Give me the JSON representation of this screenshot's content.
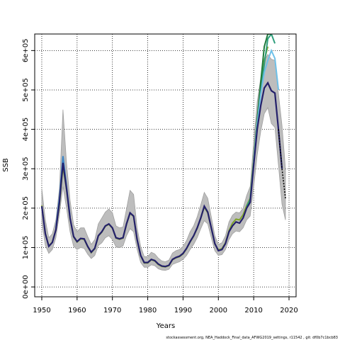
{
  "chart_data": {
    "type": "line",
    "xlabel": "Years",
    "ylabel": "SSB",
    "footer": "stockassessment.org, NEA_Haddock_Final_data_AFWG2019_settings, r11542 , git: df0b7c1bcb83",
    "xlim": [
      1948,
      2022
    ],
    "ylim": [
      -25000,
      642000
    ],
    "x_ticks": [
      1950,
      1960,
      1970,
      1980,
      1990,
      2000,
      2010,
      2020
    ],
    "x_tick_labels": [
      "1950",
      "1960",
      "1970",
      "1980",
      "1990",
      "2000",
      "2010",
      "2020"
    ],
    "y_ticks": [
      0,
      100000,
      200000,
      300000,
      400000,
      500000,
      600000
    ],
    "y_tick_labels": [
      "0e+00",
      "1e+05",
      "2e+05",
      "3e+05",
      "4e+05",
      "5e+05",
      "6e+05"
    ],
    "grid": true,
    "colors": {
      "band": "#bdbdbd",
      "band_edge": "#a0a0a0",
      "main": "#24206b",
      "projection": "#000000",
      "retro_green": "#7ea32a",
      "retro_blue": "#3d85c6",
      "retro_teal": "#2e9e7c",
      "retro_darkgreen": "#1e7b3c",
      "retro_lightblue": "#6ec0e8"
    },
    "x": [
      1950,
      1951,
      1952,
      1953,
      1954,
      1955,
      1956,
      1957,
      1958,
      1959,
      1960,
      1961,
      1962,
      1963,
      1964,
      1965,
      1966,
      1967,
      1968,
      1969,
      1970,
      1971,
      1972,
      1973,
      1974,
      1975,
      1976,
      1977,
      1978,
      1979,
      1980,
      1981,
      1982,
      1983,
      1984,
      1985,
      1986,
      1987,
      1988,
      1989,
      1990,
      1991,
      1992,
      1993,
      1994,
      1995,
      1996,
      1997,
      1998,
      1999,
      2000,
      2001,
      2002,
      2003,
      2004,
      2005,
      2006,
      2007,
      2008,
      2009,
      2010,
      2011,
      2012,
      2013,
      2014,
      2015,
      2016,
      2017,
      2018
    ],
    "estimate": [
      205000,
      135000,
      103000,
      113000,
      145000,
      215000,
      315000,
      250000,
      175000,
      128000,
      115000,
      123000,
      122000,
      103000,
      88000,
      98000,
      130000,
      140000,
      155000,
      160000,
      150000,
      125000,
      122000,
      125000,
      160000,
      188000,
      180000,
      120000,
      80000,
      62000,
      62000,
      70000,
      67000,
      58000,
      53000,
      52000,
      55000,
      70000,
      75000,
      78000,
      85000,
      98000,
      115000,
      130000,
      150000,
      175000,
      205000,
      190000,
      150000,
      110000,
      92000,
      95000,
      110000,
      140000,
      155000,
      165000,
      162000,
      175000,
      200000,
      215000,
      310000,
      400000,
      460000,
      505000,
      518000,
      498000,
      492000,
      400000,
      300000
    ],
    "lower": [
      165000,
      105000,
      85000,
      95000,
      125000,
      185000,
      255000,
      200000,
      140000,
      103000,
      95000,
      100000,
      98000,
      83000,
      72000,
      80000,
      105000,
      112000,
      125000,
      130000,
      120000,
      102000,
      100000,
      104000,
      130000,
      148000,
      140000,
      95000,
      62000,
      50000,
      50000,
      56000,
      54000,
      46000,
      43000,
      42000,
      45000,
      57000,
      61000,
      64000,
      70000,
      80000,
      95000,
      108000,
      125000,
      148000,
      168000,
      160000,
      125000,
      92000,
      80000,
      82000,
      95000,
      120000,
      135000,
      142000,
      140000,
      150000,
      170000,
      180000,
      255000,
      335000,
      395000,
      440000,
      455000,
      415000,
      405000,
      310000,
      210000
    ],
    "upper": [
      250000,
      170000,
      125000,
      135000,
      170000,
      250000,
      450000,
      315000,
      220000,
      158000,
      140000,
      150000,
      150000,
      128000,
      108000,
      120000,
      160000,
      175000,
      190000,
      198000,
      188000,
      155000,
      150000,
      152000,
      198000,
      245000,
      235000,
      150000,
      103000,
      77000,
      77000,
      88000,
      84000,
      73000,
      66000,
      64000,
      68000,
      86000,
      92000,
      95000,
      103000,
      118000,
      140000,
      155000,
      178000,
      208000,
      240000,
      225000,
      178000,
      130000,
      108000,
      112000,
      130000,
      165000,
      182000,
      190000,
      188000,
      200000,
      232000,
      255000,
      370000,
      470000,
      530000,
      575000,
      590000,
      578000,
      575000,
      490000,
      410000
    ],
    "projection": {
      "x": [
        2017,
        2018,
        2019
      ],
      "y": [
        400000,
        300000,
        225000
      ],
      "lower": [
        310000,
        210000,
        170000
      ],
      "upper": [
        490000,
        410000,
        300000
      ]
    },
    "retro": [
      {
        "color": "retro_green",
        "x": [
          1950,
          1951,
          1952,
          1953,
          1954,
          1955,
          1956,
          1957,
          1958,
          1959,
          1960,
          1961,
          1962,
          1963,
          1964,
          1965,
          1966,
          1967,
          1968,
          1969,
          1970,
          1971,
          1972,
          1973,
          1974,
          1975,
          1976,
          1977,
          1978,
          1979,
          1980,
          1981,
          1982,
          1983,
          1984,
          1985,
          1986,
          1987,
          1988,
          1989,
          1990,
          1991,
          1992,
          1993,
          1994,
          1995,
          1996,
          1997,
          1998,
          1999,
          2000,
          2001,
          2002,
          2003,
          2004,
          2005,
          2006,
          2007,
          2008,
          2009,
          2010,
          2011,
          2012,
          2013,
          2014
        ],
        "y": [
          207000,
          136000,
          104000,
          114000,
          146000,
          210000,
          305000,
          248000,
          173000,
          127000,
          114000,
          122000,
          121000,
          102000,
          87000,
          97000,
          129000,
          139000,
          154000,
          159000,
          149000,
          124000,
          121000,
          124000,
          159000,
          187000,
          179000,
          119000,
          79000,
          61000,
          61000,
          69000,
          66000,
          57000,
          52000,
          51000,
          54000,
          69000,
          74000,
          77000,
          84000,
          97000,
          114000,
          129000,
          149000,
          174000,
          203000,
          188000,
          149000,
          109000,
          94000,
          97000,
          112000,
          143000,
          162000,
          172000,
          170000,
          183000,
          206000,
          225000,
          322000,
          420000,
          500000,
          575000,
          610000
        ]
      },
      {
        "color": "retro_blue",
        "x": [
          1954,
          1955,
          1956,
          1957,
          1958
        ],
        "y": [
          150000,
          225000,
          332000,
          255000,
          178000
        ]
      },
      {
        "color": "retro_teal",
        "x": [
          2008,
          2009,
          2010,
          2011,
          2012,
          2013,
          2014,
          2015,
          2016
        ],
        "y": [
          204000,
          222000,
          318000,
          415000,
          500000,
          565000,
          630000,
          642000,
          618000
        ]
      },
      {
        "color": "retro_darkgreen",
        "x": [
          2010,
          2011,
          2012,
          2013,
          2014,
          2015
        ],
        "y": [
          320000,
          425000,
          520000,
          610000,
          642000,
          642000
        ]
      },
      {
        "color": "retro_lightblue",
        "x": [
          2010,
          2011,
          2012,
          2013,
          2014,
          2015,
          2016,
          2017
        ],
        "y": [
          315000,
          412000,
          490000,
          545000,
          575000,
          600000,
          580000,
          500000
        ]
      }
    ]
  }
}
